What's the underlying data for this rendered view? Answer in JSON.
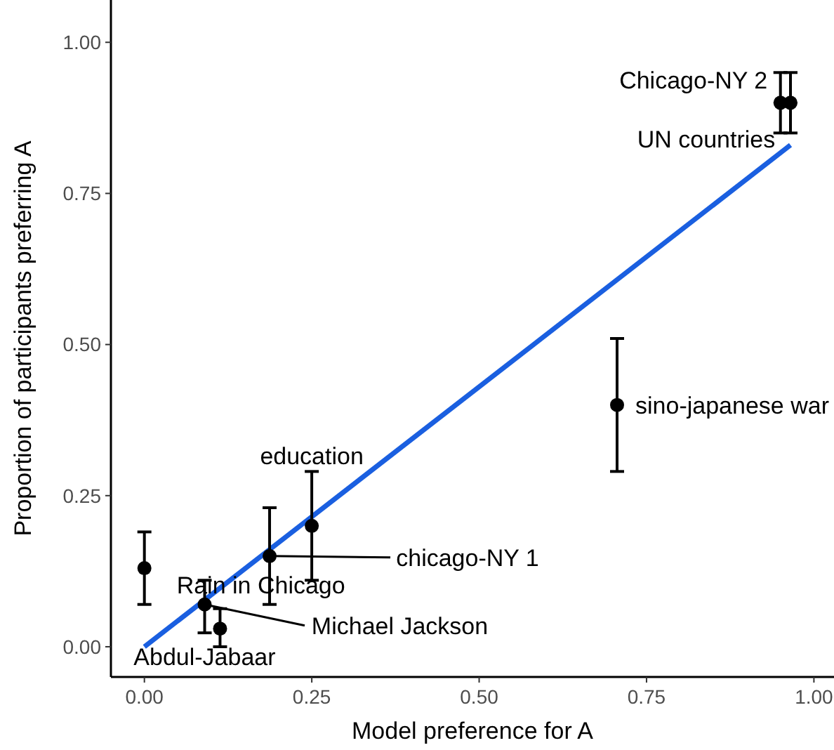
{
  "chart_data": {
    "type": "scatter",
    "xlabel": "Model preference for A",
    "ylabel": "Proportion of participants preferring A",
    "xlim": [
      -0.05,
      1.03
    ],
    "ylim": [
      -0.05,
      1.07
    ],
    "xticks": [
      {
        "value": 0,
        "label": "0.00"
      },
      {
        "value": 0.25,
        "label": "0.25"
      },
      {
        "value": 0.5,
        "label": "0.50"
      },
      {
        "value": 0.75,
        "label": "0.75"
      },
      {
        "value": 1,
        "label": "1.00"
      }
    ],
    "yticks": [
      {
        "value": 0,
        "label": "0.00"
      },
      {
        "value": 0.25,
        "label": "0.25"
      },
      {
        "value": 0.5,
        "label": "0.50"
      },
      {
        "value": 0.75,
        "label": "0.75"
      },
      {
        "value": 1,
        "label": "1.00"
      }
    ],
    "grid": false,
    "marker": "circle",
    "series": [
      {
        "color": "#000000",
        "x": [
          0,
          0.09,
          0.113,
          0.187,
          0.25,
          0.706,
          0.95,
          0.965
        ],
        "values": [
          0.13,
          0.07,
          0.03,
          0.15,
          0.2,
          0.4,
          0.9,
          0.9
        ],
        "errors": [
          [
            0.07,
            0.19
          ],
          [
            0.023,
            0.11
          ],
          [
            0,
            0.063
          ],
          [
            0.07,
            0.23
          ],
          [
            0.11,
            0.29
          ],
          [
            0.29,
            0.51
          ],
          [
            0.85,
            0.95
          ],
          [
            0.85,
            0.95
          ]
        ]
      },
      {
        "type": "line",
        "marker": "none",
        "color": "#1a5fe0",
        "x": [
          0,
          0.965
        ],
        "values": [
          0,
          0.83
        ]
      }
    ],
    "annotations": [
      {
        "text": "Chicago-NY 2",
        "x": 0.95,
        "y": 0.9
      },
      {
        "text": "UN countries",
        "x": 0.965,
        "y": 0.9
      },
      {
        "text": "sino-japanese war",
        "x": 0.706,
        "y": 0.4
      },
      {
        "text": "education",
        "x": 0.25,
        "y": 0.2
      },
      {
        "text": "chicago-NY 1",
        "x": 0.187,
        "y": 0.15
      },
      {
        "text": "Rain in Chicago",
        "x": 0,
        "y": 0.13
      },
      {
        "text": "Michael Jackson",
        "x": 0.09,
        "y": 0.07
      },
      {
        "text": "Abdul-Jabaar",
        "x": 0.113,
        "y": 0.03
      }
    ]
  }
}
